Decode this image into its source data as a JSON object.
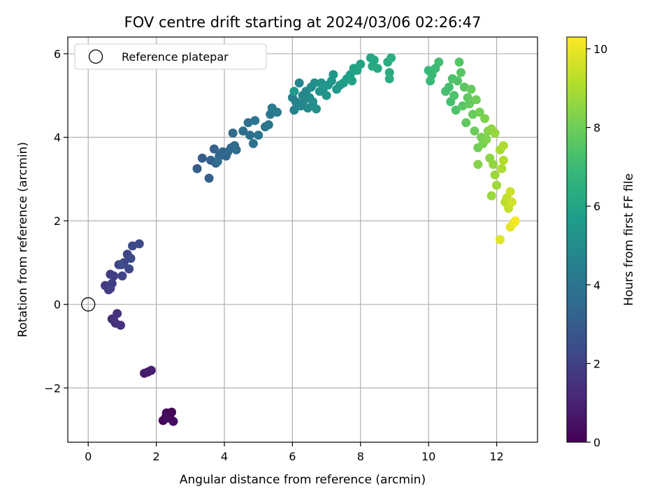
{
  "chart_data": {
    "type": "scatter",
    "title": "FOV centre drift starting at 2024/03/06 02:26:47",
    "xlabel": "Angular distance from reference (arcmin)",
    "ylabel": "Rotation from reference (arcmin)",
    "xlim": [
      -0.6,
      13.2
    ],
    "ylim": [
      -3.3,
      6.4
    ],
    "xticks": [
      0,
      2,
      4,
      6,
      8,
      10,
      12
    ],
    "yticks": [
      -2,
      0,
      2,
      4,
      6
    ],
    "xtick_labels": [
      "0",
      "2",
      "4",
      "6",
      "8",
      "10",
      "12"
    ],
    "ytick_labels": [
      "−2",
      "0",
      "2",
      "4",
      "6"
    ],
    "grid": true,
    "legend": {
      "placement": "top-left",
      "label": "Reference platepar"
    },
    "reference_point": {
      "x": 0,
      "y": 0
    },
    "colorbar": {
      "label": "Hours from first FF file",
      "min": 0,
      "max": 10.3,
      "ticks": [
        0,
        2,
        4,
        6,
        8,
        10
      ],
      "tick_labels": [
        "0",
        "2",
        "4",
        "6",
        "8",
        "10"
      ],
      "colormap_stops": [
        "#440154",
        "#482878",
        "#3e4989",
        "#31688e",
        "#26828e",
        "#1f9e89",
        "#35b779",
        "#6ece58",
        "#b5de2b",
        "#fde725"
      ]
    },
    "points": [
      {
        "x": 2.2,
        "y": -2.78,
        "h": 0.05
      },
      {
        "x": 2.3,
        "y": -2.6,
        "h": 0.1
      },
      {
        "x": 2.4,
        "y": -2.65,
        "h": 0.15
      },
      {
        "x": 2.45,
        "y": -2.58,
        "h": 0.2
      },
      {
        "x": 2.35,
        "y": -2.72,
        "h": 0.25
      },
      {
        "x": 2.5,
        "y": -2.8,
        "h": 0.3
      },
      {
        "x": 2.28,
        "y": -2.7,
        "h": 0.35
      },
      {
        "x": 1.65,
        "y": -1.65,
        "h": 0.8
      },
      {
        "x": 1.75,
        "y": -1.62,
        "h": 0.85
      },
      {
        "x": 1.85,
        "y": -1.58,
        "h": 0.9
      },
      {
        "x": 0.7,
        "y": -0.35,
        "h": 1.3
      },
      {
        "x": 0.8,
        "y": -0.45,
        "h": 1.35
      },
      {
        "x": 0.85,
        "y": -0.22,
        "h": 1.4
      },
      {
        "x": 0.95,
        "y": -0.5,
        "h": 1.45
      },
      {
        "x": 0.75,
        "y": -0.38,
        "h": 1.5
      },
      {
        "x": 0.5,
        "y": 0.45,
        "h": 1.75
      },
      {
        "x": 0.6,
        "y": 0.35,
        "h": 1.8
      },
      {
        "x": 0.65,
        "y": 0.72,
        "h": 1.85
      },
      {
        "x": 0.7,
        "y": 0.5,
        "h": 1.9
      },
      {
        "x": 0.75,
        "y": 0.68,
        "h": 1.95
      },
      {
        "x": 0.65,
        "y": 0.38,
        "h": 2.0
      },
      {
        "x": 0.9,
        "y": 0.95,
        "h": 2.05
      },
      {
        "x": 1.0,
        "y": 0.68,
        "h": 2.1
      },
      {
        "x": 1.05,
        "y": 1.0,
        "h": 2.15
      },
      {
        "x": 1.15,
        "y": 1.2,
        "h": 2.2
      },
      {
        "x": 1.2,
        "y": 0.85,
        "h": 2.25
      },
      {
        "x": 1.25,
        "y": 1.1,
        "h": 2.3
      },
      {
        "x": 1.3,
        "y": 1.4,
        "h": 2.35
      },
      {
        "x": 1.5,
        "y": 1.45,
        "h": 2.4
      },
      {
        "x": 0.98,
        "y": 0.95,
        "h": 2.45
      },
      {
        "x": 3.2,
        "y": 3.25,
        "h": 3.0
      },
      {
        "x": 3.35,
        "y": 3.5,
        "h": 3.05
      },
      {
        "x": 3.55,
        "y": 3.02,
        "h": 3.1
      },
      {
        "x": 3.6,
        "y": 3.45,
        "h": 3.15
      },
      {
        "x": 3.7,
        "y": 3.72,
        "h": 3.2
      },
      {
        "x": 3.75,
        "y": 3.38,
        "h": 3.25
      },
      {
        "x": 3.85,
        "y": 3.55,
        "h": 3.3
      },
      {
        "x": 3.95,
        "y": 3.65,
        "h": 3.35
      },
      {
        "x": 4.05,
        "y": 3.55,
        "h": 3.4
      },
      {
        "x": 4.1,
        "y": 3.65,
        "h": 3.45
      },
      {
        "x": 4.2,
        "y": 3.75,
        "h": 3.5
      },
      {
        "x": 4.25,
        "y": 4.1,
        "h": 3.55
      },
      {
        "x": 4.3,
        "y": 3.8,
        "h": 3.6
      },
      {
        "x": 4.35,
        "y": 3.7,
        "h": 3.65
      },
      {
        "x": 3.8,
        "y": 3.42,
        "h": 3.7
      },
      {
        "x": 4.55,
        "y": 4.15,
        "h": 3.75
      },
      {
        "x": 4.7,
        "y": 4.35,
        "h": 3.8
      },
      {
        "x": 4.75,
        "y": 4.05,
        "h": 3.85
      },
      {
        "x": 4.85,
        "y": 3.85,
        "h": 3.9
      },
      {
        "x": 4.9,
        "y": 4.4,
        "h": 3.95
      },
      {
        "x": 5.0,
        "y": 4.05,
        "h": 4.0
      },
      {
        "x": 5.2,
        "y": 4.25,
        "h": 4.05
      },
      {
        "x": 5.3,
        "y": 4.3,
        "h": 4.1
      },
      {
        "x": 5.35,
        "y": 4.55,
        "h": 4.15
      },
      {
        "x": 5.4,
        "y": 4.7,
        "h": 4.2
      },
      {
        "x": 5.55,
        "y": 4.6,
        "h": 4.25
      },
      {
        "x": 6.0,
        "y": 4.95,
        "h": 4.5
      },
      {
        "x": 6.05,
        "y": 4.65,
        "h": 4.55
      },
      {
        "x": 6.1,
        "y": 4.85,
        "h": 4.6
      },
      {
        "x": 6.2,
        "y": 5.3,
        "h": 4.65
      },
      {
        "x": 6.25,
        "y": 4.75,
        "h": 4.7
      },
      {
        "x": 6.3,
        "y": 5.0,
        "h": 4.75
      },
      {
        "x": 6.35,
        "y": 4.9,
        "h": 4.8
      },
      {
        "x": 6.4,
        "y": 5.1,
        "h": 4.85
      },
      {
        "x": 6.45,
        "y": 4.7,
        "h": 4.9
      },
      {
        "x": 6.5,
        "y": 4.95,
        "h": 4.95
      },
      {
        "x": 6.55,
        "y": 5.2,
        "h": 5.0
      },
      {
        "x": 6.6,
        "y": 4.85,
        "h": 5.05
      },
      {
        "x": 6.65,
        "y": 5.3,
        "h": 5.1
      },
      {
        "x": 6.7,
        "y": 4.68,
        "h": 5.15
      },
      {
        "x": 6.8,
        "y": 5.1,
        "h": 5.2
      },
      {
        "x": 6.85,
        "y": 5.3,
        "h": 5.25
      },
      {
        "x": 6.9,
        "y": 5.15,
        "h": 5.3
      },
      {
        "x": 7.0,
        "y": 5.0,
        "h": 5.35
      },
      {
        "x": 7.05,
        "y": 5.25,
        "h": 5.4
      },
      {
        "x": 7.15,
        "y": 5.35,
        "h": 5.45
      },
      {
        "x": 7.2,
        "y": 5.5,
        "h": 5.5
      },
      {
        "x": 7.3,
        "y": 5.15,
        "h": 5.55
      },
      {
        "x": 7.4,
        "y": 5.25,
        "h": 5.6
      },
      {
        "x": 6.05,
        "y": 5.1,
        "h": 5.62
      },
      {
        "x": 7.5,
        "y": 5.3,
        "h": 5.7
      },
      {
        "x": 7.6,
        "y": 5.4,
        "h": 5.75
      },
      {
        "x": 7.7,
        "y": 5.5,
        "h": 5.8
      },
      {
        "x": 7.75,
        "y": 5.35,
        "h": 5.85
      },
      {
        "x": 7.8,
        "y": 5.65,
        "h": 5.9
      },
      {
        "x": 7.9,
        "y": 5.6,
        "h": 5.95
      },
      {
        "x": 8.0,
        "y": 5.75,
        "h": 6.0
      },
      {
        "x": 8.3,
        "y": 5.9,
        "h": 6.1
      },
      {
        "x": 8.35,
        "y": 5.7,
        "h": 6.15
      },
      {
        "x": 8.4,
        "y": 5.85,
        "h": 6.2
      },
      {
        "x": 8.5,
        "y": 5.65,
        "h": 6.25
      },
      {
        "x": 8.8,
        "y": 5.8,
        "h": 6.3
      },
      {
        "x": 8.85,
        "y": 5.55,
        "h": 6.35
      },
      {
        "x": 8.85,
        "y": 5.4,
        "h": 6.4
      },
      {
        "x": 8.9,
        "y": 5.9,
        "h": 6.45
      },
      {
        "x": 10.0,
        "y": 5.6,
        "h": 6.9
      },
      {
        "x": 10.05,
        "y": 5.35,
        "h": 6.95
      },
      {
        "x": 10.1,
        "y": 5.5,
        "h": 7.0
      },
      {
        "x": 10.2,
        "y": 5.65,
        "h": 7.05
      },
      {
        "x": 10.3,
        "y": 5.8,
        "h": 7.1
      },
      {
        "x": 10.5,
        "y": 5.1,
        "h": 7.15
      },
      {
        "x": 10.6,
        "y": 5.2,
        "h": 7.2
      },
      {
        "x": 10.65,
        "y": 4.85,
        "h": 7.25
      },
      {
        "x": 10.7,
        "y": 5.4,
        "h": 7.3
      },
      {
        "x": 10.75,
        "y": 5.0,
        "h": 7.35
      },
      {
        "x": 10.8,
        "y": 4.65,
        "h": 7.4
      },
      {
        "x": 10.85,
        "y": 5.35,
        "h": 7.45
      },
      {
        "x": 10.9,
        "y": 5.8,
        "h": 7.5
      },
      {
        "x": 10.95,
        "y": 5.55,
        "h": 7.55
      },
      {
        "x": 11.0,
        "y": 4.75,
        "h": 7.6
      },
      {
        "x": 11.05,
        "y": 5.2,
        "h": 7.65
      },
      {
        "x": 11.1,
        "y": 4.35,
        "h": 7.7
      },
      {
        "x": 11.15,
        "y": 4.95,
        "h": 7.75
      },
      {
        "x": 11.2,
        "y": 4.8,
        "h": 7.8
      },
      {
        "x": 11.25,
        "y": 5.15,
        "h": 7.85
      },
      {
        "x": 11.3,
        "y": 4.55,
        "h": 7.9
      },
      {
        "x": 11.35,
        "y": 4.15,
        "h": 7.95
      },
      {
        "x": 11.4,
        "y": 4.9,
        "h": 8.0
      },
      {
        "x": 11.45,
        "y": 3.75,
        "h": 8.05
      },
      {
        "x": 11.5,
        "y": 4.6,
        "h": 8.1
      },
      {
        "x": 11.55,
        "y": 4.0,
        "h": 8.15
      },
      {
        "x": 11.6,
        "y": 3.85,
        "h": 8.2
      },
      {
        "x": 11.65,
        "y": 4.45,
        "h": 8.25
      },
      {
        "x": 11.7,
        "y": 3.95,
        "h": 8.3
      },
      {
        "x": 11.75,
        "y": 4.15,
        "h": 8.35
      },
      {
        "x": 11.45,
        "y": 3.35,
        "h": 8.4
      },
      {
        "x": 11.8,
        "y": 3.5,
        "h": 8.5
      },
      {
        "x": 11.85,
        "y": 4.2,
        "h": 8.55
      },
      {
        "x": 11.9,
        "y": 3.35,
        "h": 8.6
      },
      {
        "x": 11.95,
        "y": 4.1,
        "h": 8.65
      },
      {
        "x": 11.85,
        "y": 2.6,
        "h": 8.7
      },
      {
        "x": 11.95,
        "y": 3.1,
        "h": 8.75
      },
      {
        "x": 12.0,
        "y": 2.85,
        "h": 8.8
      },
      {
        "x": 12.1,
        "y": 3.7,
        "h": 8.9
      },
      {
        "x": 12.15,
        "y": 3.25,
        "h": 9.0
      },
      {
        "x": 12.2,
        "y": 3.8,
        "h": 9.05
      },
      {
        "x": 12.2,
        "y": 3.45,
        "h": 9.1
      },
      {
        "x": 12.25,
        "y": 2.45,
        "h": 9.2
      },
      {
        "x": 12.3,
        "y": 2.55,
        "h": 9.3
      },
      {
        "x": 12.35,
        "y": 2.3,
        "h": 9.4
      },
      {
        "x": 12.4,
        "y": 2.7,
        "h": 9.5
      },
      {
        "x": 12.45,
        "y": 2.45,
        "h": 9.6
      },
      {
        "x": 12.1,
        "y": 1.55,
        "h": 9.8
      },
      {
        "x": 12.4,
        "y": 1.85,
        "h": 9.9
      },
      {
        "x": 12.5,
        "y": 1.95,
        "h": 10.0
      },
      {
        "x": 12.55,
        "y": 2.0,
        "h": 10.2
      }
    ]
  }
}
